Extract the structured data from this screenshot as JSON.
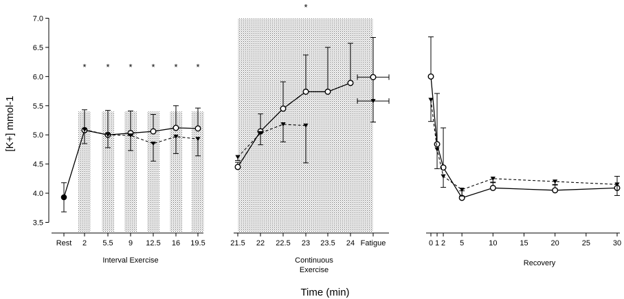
{
  "chart_data": {
    "type": "line",
    "xlabel": "Time (min)",
    "ylabel": "[K+] mmol-1",
    "ylim": [
      3.5,
      7.0
    ],
    "yticks": [
      "3.5",
      "4.0",
      "4.5",
      "5.0",
      "5.5",
      "6.0",
      "6.5",
      "7.0"
    ],
    "panels": [
      {
        "label": "Interval Exercise",
        "x_ticks": [
          "Rest",
          "2",
          "5.5",
          "9",
          "12.5",
          "16",
          "19.5"
        ],
        "shaded_intervals": true,
        "significance_marks": [
          "*",
          "*",
          "*",
          "*",
          "*",
          "*"
        ],
        "series": [
          {
            "marker": "open-circle",
            "line": "solid",
            "x": [
              "Rest",
              "2",
              "5.5",
              "9",
              "12.5",
              "16",
              "19.5"
            ],
            "y": [
              3.93,
              5.08,
              5.0,
              5.03,
              5.06,
              5.12,
              5.11
            ],
            "err": [
              0.25,
              0.35,
              0.42,
              0.38,
              0.29,
              0.38,
              0.35
            ]
          },
          {
            "marker": "filled-triangle",
            "line": "dashed",
            "x": [
              "2",
              "5.5",
              "9",
              "12.5",
              "16",
              "19.5"
            ],
            "y": [
              5.09,
              5.0,
              4.99,
              4.85,
              4.97,
              4.93
            ],
            "err": [
              0.24,
              0.22,
              0.26,
              0.3,
              0.29,
              0.29
            ]
          }
        ]
      },
      {
        "label": "Continuous Exercise",
        "x_ticks": [
          "21.5",
          "22",
          "22.5",
          "23",
          "23.5",
          "24",
          "Fatigue"
        ],
        "shaded_background": true,
        "significance_marks": [
          "*"
        ],
        "series": [
          {
            "marker": "open-circle",
            "line": "solid",
            "x": [
              "21.5",
              "22",
              "22.5",
              "23",
              "23.5",
              "24"
            ],
            "y": [
              4.45,
              5.06,
              5.45,
              5.74,
              5.74,
              5.89
            ],
            "err": [
              0.08,
              0.3,
              0.46,
              0.63,
              0.76,
              0.68
            ]
          },
          {
            "marker": "filled-triangle",
            "line": "dashed",
            "x": [
              "21.5",
              "22",
              "22.5",
              "23"
            ],
            "y": [
              4.62,
              5.03,
              5.18,
              5.16
            ],
            "err": [
              0.06,
              0.2,
              0.3,
              0.64
            ]
          },
          {
            "marker": "open-circle",
            "line": "none",
            "x": [
              "Fatigue"
            ],
            "y": [
              5.99
            ],
            "err": [
              0.68
            ]
          },
          {
            "marker": "filled-triangle",
            "line": "none",
            "x": [
              "Fatigue"
            ],
            "y": [
              5.58
            ],
            "err": [
              0.36
            ]
          }
        ]
      },
      {
        "label": "Recovery",
        "x_ticks": [
          "0",
          "1",
          "2",
          "5",
          "10",
          "15",
          "20",
          "25",
          "30"
        ],
        "xlim": [
          0,
          30
        ],
        "series": [
          {
            "marker": "open-circle",
            "line": "solid",
            "x": [
              0,
              1,
              2,
              5,
              10,
              20,
              30
            ],
            "y": [
              6.0,
              4.84,
              4.44,
              3.92,
              4.09,
              4.05,
              4.09
            ],
            "err": [
              0.68,
              0.87,
              0.68,
              0.12,
              0.1,
              0.1,
              0.2
            ]
          },
          {
            "marker": "filled-triangle",
            "line": "dashed",
            "x": [
              0,
              1,
              2,
              5,
              10,
              20,
              30
            ],
            "y": [
              5.6,
              4.75,
              4.29,
              4.06,
              4.25,
              4.2,
              4.15
            ],
            "err": [
              0.37,
              0.33,
              0.19,
              0.11,
              0.07,
              0.06,
              0.19
            ]
          }
        ]
      }
    ]
  }
}
